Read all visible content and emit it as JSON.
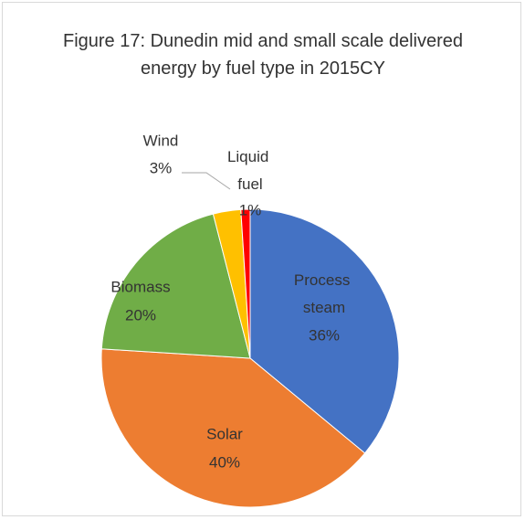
{
  "chart_data": {
    "type": "pie",
    "title": "Figure 17: Dunedin mid and small scale delivered energy by fuel type in 2015CY",
    "categories": [
      "Process steam",
      "Solar",
      "Biomass",
      "Wind",
      "Liquid fuel"
    ],
    "values": [
      36,
      40,
      20,
      3,
      1
    ],
    "value_labels": [
      "36%",
      "40%",
      "20%",
      "3%",
      "1%"
    ],
    "colors": [
      "#4472c4",
      "#ed7d31",
      "#70ad47",
      "#ffc000",
      "#ff0000"
    ]
  }
}
